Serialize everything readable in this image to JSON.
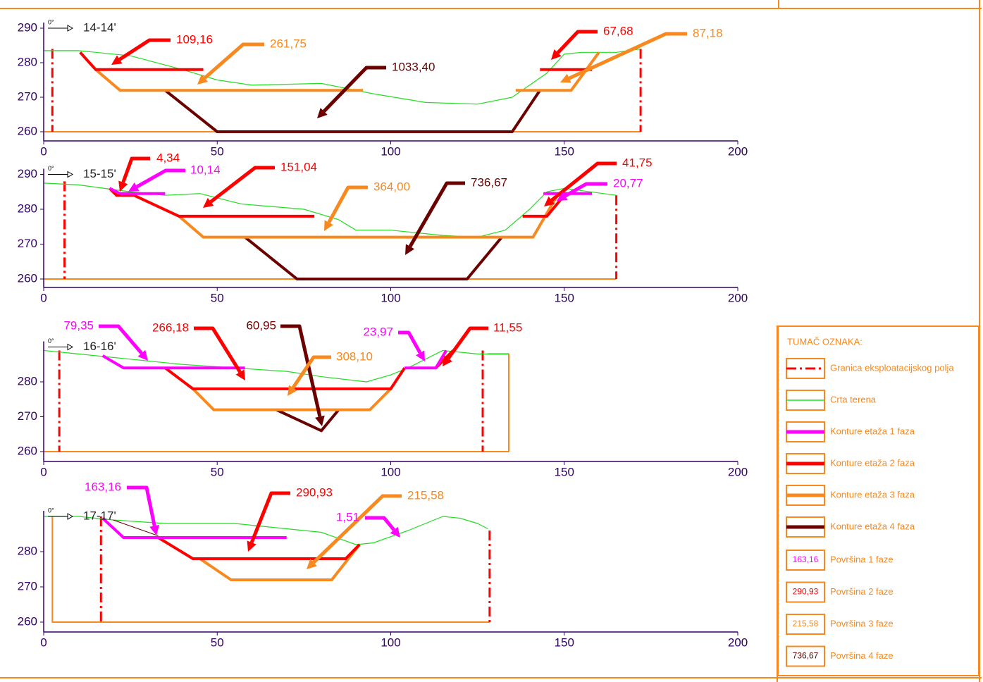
{
  "sections": [
    {
      "title": "14-14'",
      "angle": "0°",
      "xticks": [
        0,
        50,
        100,
        150,
        200
      ],
      "yticks": [
        260,
        270,
        280,
        290
      ],
      "areas": [
        "109,16",
        "261,75",
        "1033,40",
        "67,68",
        "87,18"
      ]
    },
    {
      "title": "15-15'",
      "angle": "0°",
      "xticks": [
        0,
        50,
        100,
        150,
        200
      ],
      "yticks": [
        260,
        270,
        280,
        290
      ],
      "areas": [
        "4,34",
        "10,14",
        "151,04",
        "364,00",
        "736,67",
        "41,75",
        "20,77"
      ]
    },
    {
      "title": "16-16'",
      "angle": "0°",
      "xticks": [
        0,
        50,
        100,
        150,
        200
      ],
      "yticks": [
        260,
        270,
        280
      ],
      "areas": [
        "79,35",
        "266,18",
        "60,95",
        "308,10",
        "23,97",
        "11,55"
      ]
    },
    {
      "title": "17-17'",
      "angle": "0°",
      "xticks": [
        0,
        50,
        100,
        150,
        200
      ],
      "yticks": [
        260,
        270,
        280
      ],
      "areas": [
        "163,16",
        "290,93",
        "215,58",
        "1,51"
      ]
    }
  ],
  "legend": {
    "title": "TUMAČ OZNAKA:",
    "items": [
      {
        "label": "Granica eksploatacijskog polja"
      },
      {
        "label": "Crta terena"
      },
      {
        "label": "Konture etaža 1 faza"
      },
      {
        "label": "Konture etaža 2 faza"
      },
      {
        "label": "Konture etaža 3 faza"
      },
      {
        "label": "Konture etaža 4 faza"
      },
      {
        "sample": "163,16",
        "label": "Površina 1 faze"
      },
      {
        "sample": "290,93",
        "label": "Površina 2 faze"
      },
      {
        "sample": "215,58",
        "label": "Površina 3 faze"
      },
      {
        "sample": "736,67",
        "label": "Površina 4 faze"
      }
    ]
  }
}
